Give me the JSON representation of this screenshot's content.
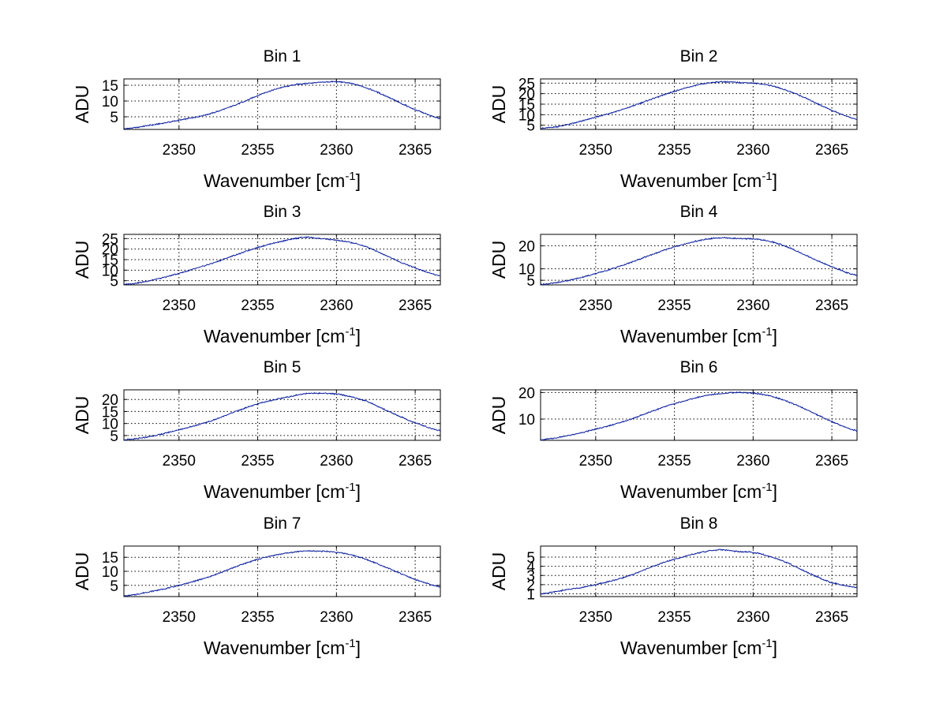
{
  "figure": {
    "background": "#ffffff",
    "line_color": "#0b1f9e"
  },
  "chart_data": [
    {
      "type": "line",
      "title": "Bin 1",
      "xlabel": "Wavenumber [cm",
      "xlabel_sup": "-1",
      "xlabel_end": "]",
      "ylabel": "ADU",
      "xlim": [
        2346.5,
        2366.6
      ],
      "ylim": [
        1,
        17
      ],
      "xticks": [
        2350,
        2355,
        2360,
        2365
      ],
      "yticks": [
        5,
        10,
        15
      ],
      "grid": true,
      "series": [
        {
          "name": "Bin 1",
          "x": [
            2346.5,
            2348,
            2350,
            2352,
            2354,
            2355.5,
            2357,
            2358,
            2359,
            2360,
            2361,
            2362,
            2363,
            2364,
            2365,
            2366.6
          ],
          "values": [
            1.2,
            2.2,
            3.9,
            6.0,
            9.5,
            12.7,
            14.8,
            15.5,
            15.9,
            16.1,
            15.5,
            14.0,
            11.9,
            9.5,
            7.2,
            4.5
          ]
        }
      ]
    },
    {
      "type": "line",
      "title": "Bin 2",
      "xlabel": "Wavenumber [cm",
      "xlabel_sup": "-1",
      "xlabel_end": "]",
      "ylabel": "ADU",
      "xlim": [
        2346.5,
        2366.6
      ],
      "ylim": [
        3,
        27
      ],
      "xticks": [
        2350,
        2355,
        2360,
        2365
      ],
      "yticks": [
        5,
        10,
        15,
        20,
        25
      ],
      "grid": true,
      "series": [
        {
          "name": "Bin 2",
          "x": [
            2346.5,
            2348,
            2350,
            2352,
            2354,
            2355.5,
            2357,
            2358,
            2359,
            2360,
            2361,
            2362,
            2363,
            2364,
            2365,
            2366.6
          ],
          "values": [
            3.5,
            5.0,
            8.8,
            13.2,
            18.5,
            22.2,
            24.8,
            25.6,
            25.3,
            25.0,
            24.0,
            21.9,
            19.0,
            15.5,
            12.0,
            7.8
          ]
        }
      ]
    },
    {
      "type": "line",
      "title": "Bin 3",
      "xlabel": "Wavenumber [cm",
      "xlabel_sup": "-1",
      "xlabel_end": "]",
      "ylabel": "ADU",
      "xlim": [
        2346.5,
        2366.6
      ],
      "ylim": [
        3,
        27
      ],
      "xticks": [
        2350,
        2355,
        2360,
        2365
      ],
      "yticks": [
        5,
        10,
        15,
        20,
        25
      ],
      "grid": true,
      "series": [
        {
          "name": "Bin 3",
          "x": [
            2346.5,
            2348,
            2350,
            2352,
            2354,
            2355.5,
            2357,
            2358,
            2359,
            2360,
            2361,
            2362,
            2363,
            2364,
            2365,
            2366.6
          ],
          "values": [
            3.2,
            4.8,
            8.5,
            13.0,
            18.2,
            21.8,
            24.4,
            25.6,
            25.0,
            24.2,
            23.0,
            20.8,
            17.5,
            14.0,
            11.0,
            7.3
          ]
        }
      ]
    },
    {
      "type": "line",
      "title": "Bin 4",
      "xlabel": "Wavenumber [cm",
      "xlabel_sup": "-1",
      "xlabel_end": "]",
      "ylabel": "ADU",
      "xlim": [
        2346.5,
        2366.6
      ],
      "ylim": [
        3,
        25
      ],
      "xticks": [
        2350,
        2355,
        2360,
        2365
      ],
      "yticks": [
        5,
        10,
        20
      ],
      "grid": true,
      "series": [
        {
          "name": "Bin 4",
          "x": [
            2346.5,
            2348,
            2350,
            2352,
            2354,
            2355.5,
            2357,
            2358,
            2359,
            2360,
            2361,
            2362,
            2363,
            2364,
            2365,
            2366.6
          ],
          "values": [
            3.2,
            4.6,
            7.9,
            12.2,
            17.2,
            20.5,
            22.8,
            23.5,
            23.2,
            23.0,
            22.0,
            20.0,
            17.0,
            13.8,
            10.8,
            7.1
          ]
        }
      ]
    },
    {
      "type": "line",
      "title": "Bin 5",
      "xlabel": "Wavenumber [cm",
      "xlabel_sup": "-1",
      "xlabel_end": "]",
      "ylabel": "ADU",
      "xlim": [
        2346.5,
        2366.6
      ],
      "ylim": [
        3,
        24
      ],
      "xticks": [
        2350,
        2355,
        2360,
        2365
      ],
      "yticks": [
        5,
        10,
        15,
        20
      ],
      "grid": true,
      "series": [
        {
          "name": "Bin 5",
          "x": [
            2346.5,
            2348,
            2350,
            2352,
            2354,
            2355.5,
            2357,
            2358,
            2359,
            2360,
            2361,
            2362,
            2363,
            2364,
            2365,
            2366.6
          ],
          "values": [
            3.2,
            4.4,
            7.4,
            11.0,
            15.9,
            19.0,
            21.1,
            22.4,
            22.6,
            22.2,
            21.0,
            19.0,
            16.0,
            13.0,
            10.2,
            7.0
          ]
        }
      ]
    },
    {
      "type": "line",
      "title": "Bin 6",
      "xlabel": "Wavenumber [cm",
      "xlabel_sup": "-1",
      "xlabel_end": "]",
      "ylabel": "ADU",
      "xlim": [
        2346.5,
        2366.6
      ],
      "ylim": [
        2,
        21
      ],
      "xticks": [
        2350,
        2355,
        2360,
        2365
      ],
      "yticks": [
        10,
        20
      ],
      "grid": true,
      "series": [
        {
          "name": "Bin 6",
          "x": [
            2346.5,
            2348,
            2350,
            2352,
            2354,
            2355.5,
            2357,
            2358,
            2359,
            2360,
            2361,
            2362,
            2363,
            2364,
            2365,
            2366.6
          ],
          "values": [
            2.2,
            3.5,
            6.2,
            9.5,
            13.8,
            16.6,
            18.8,
            19.6,
            20.0,
            19.7,
            18.8,
            17.0,
            14.6,
            11.8,
            9.0,
            5.6
          ]
        }
      ]
    },
    {
      "type": "line",
      "title": "Bin 7",
      "xlabel": "Wavenumber [cm",
      "xlabel_sup": "-1",
      "xlabel_end": "]",
      "ylabel": "ADU",
      "xlim": [
        2346.5,
        2366.6
      ],
      "ylim": [
        1,
        19
      ],
      "xticks": [
        2350,
        2355,
        2360,
        2365
      ],
      "yticks": [
        5,
        10,
        15
      ],
      "grid": true,
      "series": [
        {
          "name": "Bin 7",
          "x": [
            2346.5,
            2348,
            2350,
            2352,
            2354,
            2355.5,
            2357,
            2358,
            2359,
            2360,
            2361,
            2362,
            2363,
            2364,
            2365,
            2366.6
          ],
          "values": [
            1.2,
            2.6,
            5.0,
            8.2,
            12.4,
            15.0,
            16.6,
            17.2,
            17.2,
            16.8,
            15.8,
            14.0,
            11.8,
            9.4,
            7.0,
            4.5
          ]
        }
      ]
    },
    {
      "type": "line",
      "title": "Bin 8",
      "xlabel": "Wavenumber [cm",
      "xlabel_sup": "-1",
      "xlabel_end": "]",
      "ylabel": "ADU",
      "xlim": [
        2346.5,
        2366.6
      ],
      "ylim": [
        0.7,
        6.2
      ],
      "xticks": [
        2350,
        2355,
        2360,
        2365
      ],
      "yticks": [
        1,
        2,
        3,
        4,
        5
      ],
      "grid": true,
      "series": [
        {
          "name": "Bin 8",
          "x": [
            2346.5,
            2348,
            2350,
            2352,
            2354,
            2355.5,
            2357,
            2358,
            2359,
            2360,
            2361,
            2362,
            2363,
            2364,
            2365,
            2366.6
          ],
          "values": [
            1.0,
            1.4,
            2.0,
            2.9,
            4.2,
            5.0,
            5.6,
            5.8,
            5.6,
            5.5,
            5.1,
            4.5,
            3.7,
            2.9,
            2.2,
            1.7
          ]
        }
      ]
    }
  ]
}
